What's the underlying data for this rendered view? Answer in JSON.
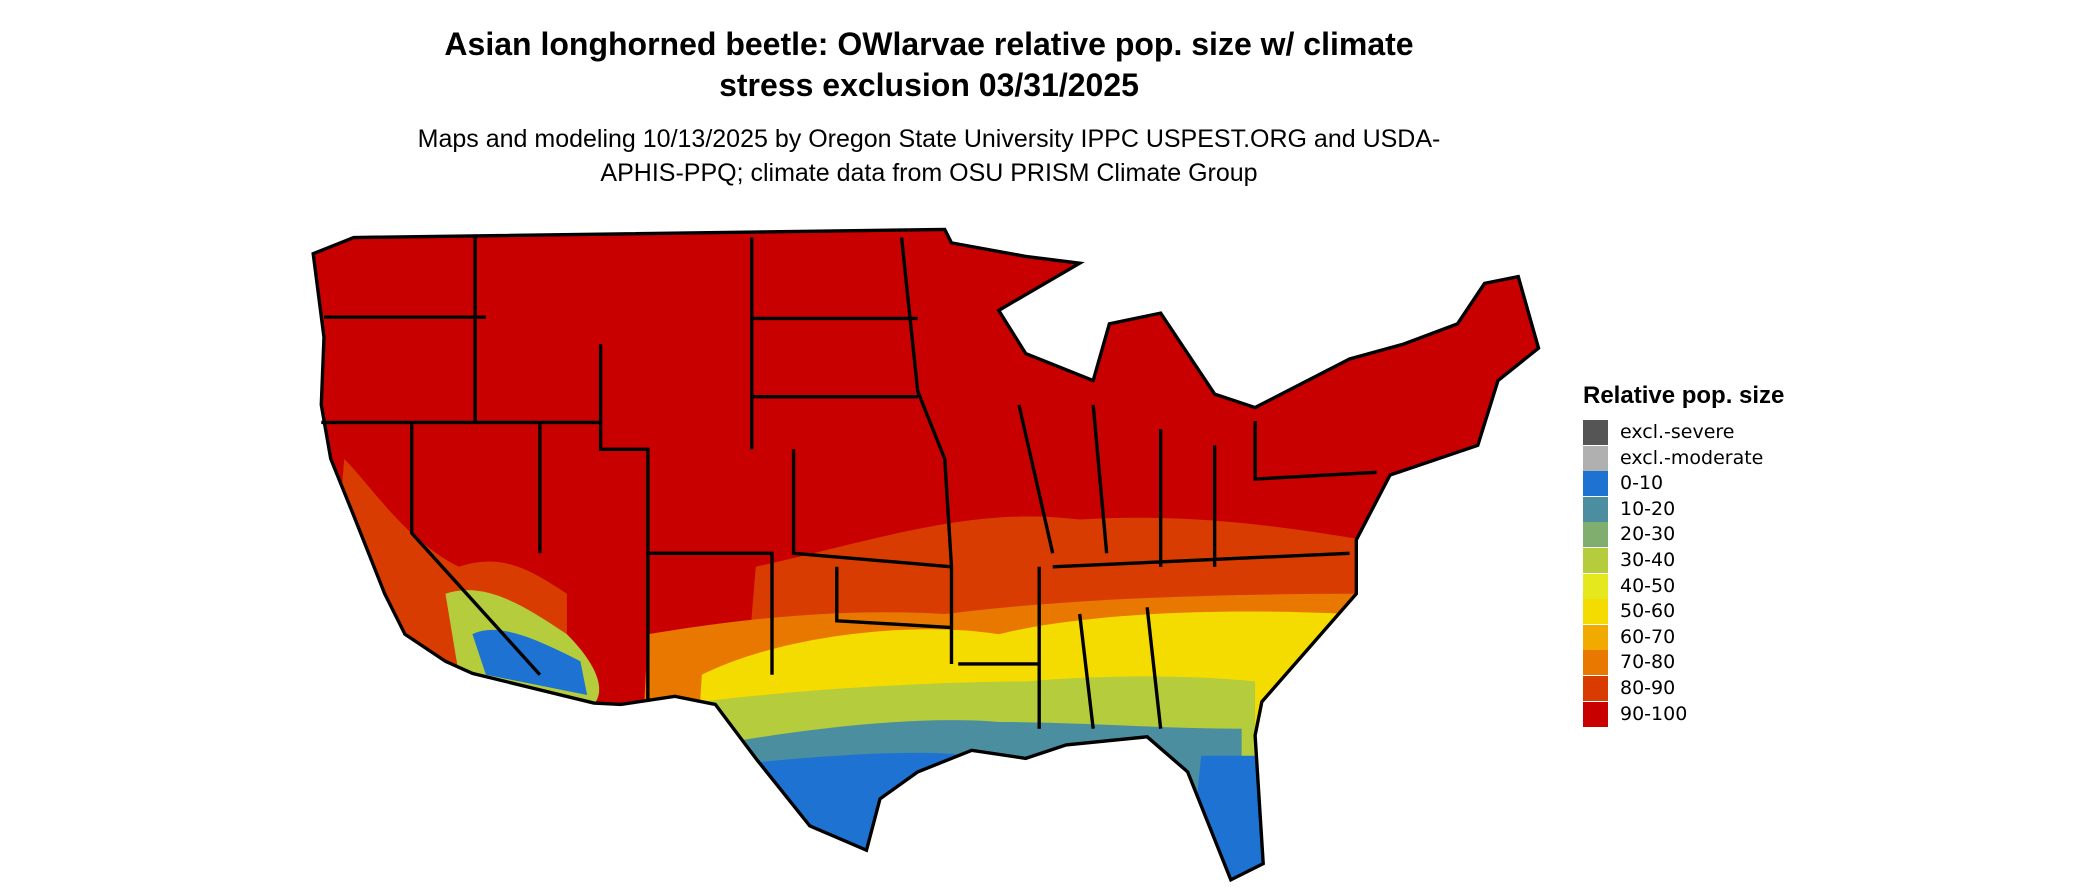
{
  "header": {
    "title": "Asian longhorned beetle: OWlarvae relative pop. size w/ climate stress exclusion 03/31/2025",
    "subtitle": "Maps and modeling 10/13/2025 by Oregon State University IPPC USPEST.ORG and USDA-APHIS-PPQ; climate data from OSU PRISM Climate Group"
  },
  "legend": {
    "title": "Relative pop. size",
    "items": [
      {
        "label": "excl.-severe",
        "color": "#555555"
      },
      {
        "label": "excl.-moderate",
        "color": "#b0b0b0"
      },
      {
        "label": "0-10",
        "color": "#1e73d2"
      },
      {
        "label": "10-20",
        "color": "#4a8ea0"
      },
      {
        "label": "20-30",
        "color": "#7fae6e"
      },
      {
        "label": "30-40",
        "color": "#b5cc3c"
      },
      {
        "label": "40-50",
        "color": "#e4e81c"
      },
      {
        "label": "50-60",
        "color": "#f5dc00"
      },
      {
        "label": "60-70",
        "color": "#f0aa00"
      },
      {
        "label": "70-80",
        "color": "#e87800"
      },
      {
        "label": "80-90",
        "color": "#d83c00"
      },
      {
        "label": "90-100",
        "color": "#c80000"
      }
    ]
  }
}
